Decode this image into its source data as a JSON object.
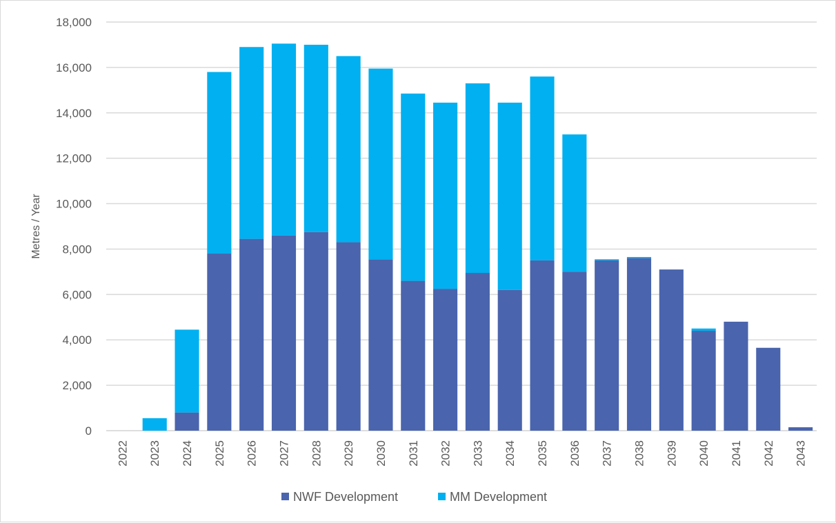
{
  "chart_data": {
    "type": "bar",
    "stacked": true,
    "ylabel": "Metres / Year",
    "xlabel": "",
    "ylim": [
      0,
      18000
    ],
    "yticks": [
      0,
      2000,
      4000,
      6000,
      8000,
      10000,
      12000,
      14000,
      16000,
      18000
    ],
    "ytick_labels": [
      "0",
      "2,000",
      "4,000",
      "6,000",
      "8,000",
      "10,000",
      "12,000",
      "14,000",
      "16,000",
      "18,000"
    ],
    "grid": true,
    "legend_position": "bottom",
    "categories": [
      "2022",
      "2023",
      "2024",
      "2025",
      "2026",
      "2027",
      "2028",
      "2029",
      "2030",
      "2031",
      "2032",
      "2033",
      "2034",
      "2035",
      "2036",
      "2037",
      "2038",
      "2039",
      "2040",
      "2041",
      "2042",
      "2043"
    ],
    "series": [
      {
        "name": "NWF Development",
        "color": "#4a64ad",
        "values": [
          0,
          0,
          800,
          7800,
          8450,
          8600,
          8750,
          8300,
          7550,
          6600,
          6250,
          6950,
          6200,
          7500,
          7000,
          7500,
          7600,
          7100,
          4400,
          4800,
          3650,
          150
        ]
      },
      {
        "name": "MM Development",
        "color": "#00b0f0",
        "values": [
          0,
          550,
          3650,
          8000,
          8450,
          8450,
          8250,
          8200,
          8400,
          8250,
          8200,
          8350,
          8250,
          8100,
          6050,
          50,
          50,
          0,
          100,
          0,
          0,
          0
        ]
      }
    ]
  }
}
